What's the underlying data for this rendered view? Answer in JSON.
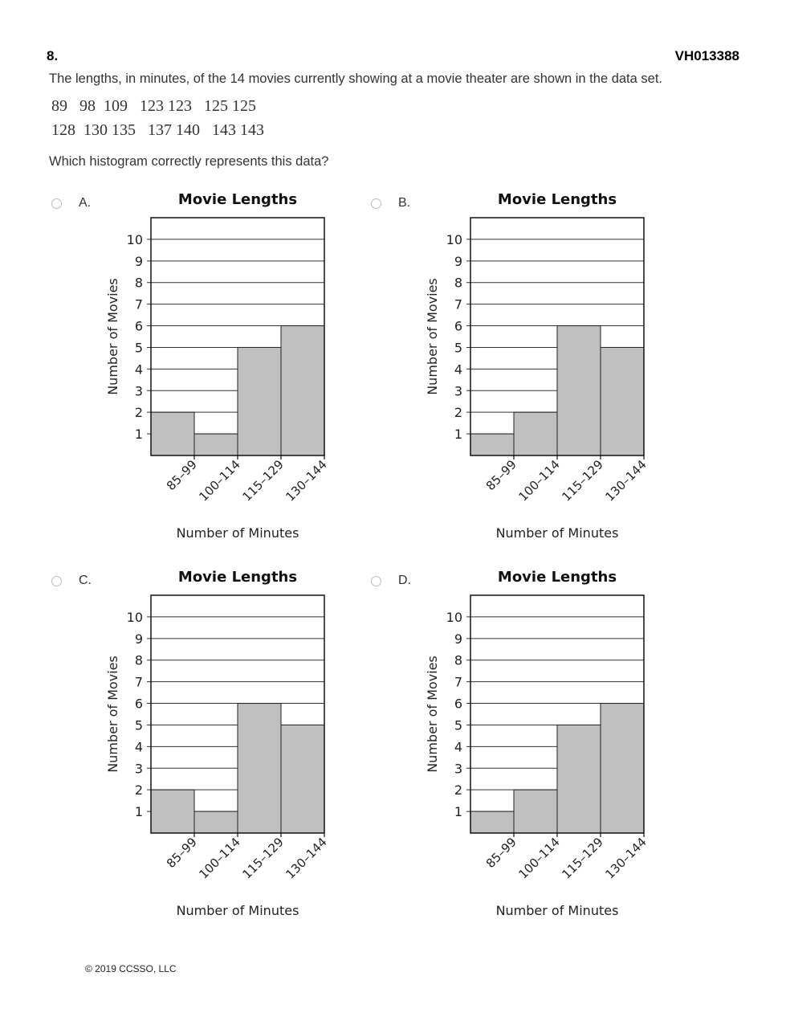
{
  "header": {
    "question_number": "8.",
    "item_id": "VH013388"
  },
  "prompt": "The lengths, in minutes, of the 14 movies currently showing at a movie theater are shown in the data set.",
  "data_set": {
    "row1": "89   98  109   123 123   125 125",
    "row2": "128  130 135   137 140   143 143"
  },
  "question": "Which histogram correctly represents this data?",
  "options": [
    {
      "letter": "A.",
      "selected": false
    },
    {
      "letter": "B.",
      "selected": false
    },
    {
      "letter": "C.",
      "selected": false
    },
    {
      "letter": "D.",
      "selected": false
    }
  ],
  "chart_data": [
    {
      "type": "bar",
      "option": "A",
      "title": "Movie Lengths",
      "xlabel": "Number of Minutes",
      "ylabel": "Number of Movies",
      "categories": [
        "85–99",
        "100–114",
        "115–129",
        "130–144"
      ],
      "values": [
        2,
        1,
        5,
        6
      ],
      "ylim": [
        0,
        11
      ],
      "yticks": [
        1,
        2,
        3,
        4,
        5,
        6,
        7,
        8,
        9,
        10
      ],
      "grid": true,
      "bar_color": "#c0c0c0"
    },
    {
      "type": "bar",
      "option": "B",
      "title": "Movie Lengths",
      "xlabel": "Number of Minutes",
      "ylabel": "Number of Movies",
      "categories": [
        "85–99",
        "100–114",
        "115–129",
        "130–144"
      ],
      "values": [
        1,
        2,
        6,
        5
      ],
      "ylim": [
        0,
        11
      ],
      "yticks": [
        1,
        2,
        3,
        4,
        5,
        6,
        7,
        8,
        9,
        10
      ],
      "grid": true,
      "bar_color": "#c0c0c0"
    },
    {
      "type": "bar",
      "option": "C",
      "title": "Movie Lengths",
      "xlabel": "Number of Minutes",
      "ylabel": "Number of Movies",
      "categories": [
        "85–99",
        "100–114",
        "115–129",
        "130–144"
      ],
      "values": [
        2,
        1,
        6,
        5
      ],
      "ylim": [
        0,
        11
      ],
      "yticks": [
        1,
        2,
        3,
        4,
        5,
        6,
        7,
        8,
        9,
        10
      ],
      "grid": true,
      "bar_color": "#c0c0c0"
    },
    {
      "type": "bar",
      "option": "D",
      "title": "Movie Lengths",
      "xlabel": "Number of Minutes",
      "ylabel": "Number of Movies",
      "categories": [
        "85–99",
        "100–114",
        "115–129",
        "130–144"
      ],
      "values": [
        1,
        2,
        5,
        6
      ],
      "ylim": [
        0,
        11
      ],
      "yticks": [
        1,
        2,
        3,
        4,
        5,
        6,
        7,
        8,
        9,
        10
      ],
      "grid": true,
      "bar_color": "#c0c0c0"
    }
  ],
  "footer": "© 2019 CCSSO, LLC"
}
